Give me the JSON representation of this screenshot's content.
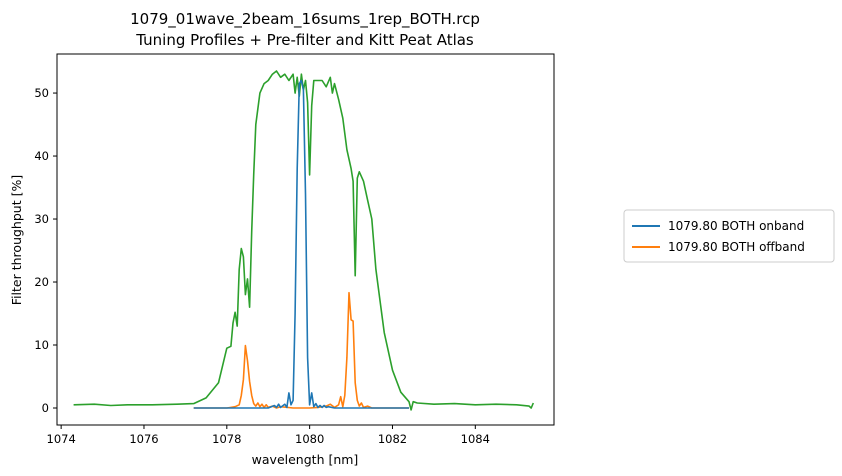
{
  "chart_data": {
    "type": "line",
    "title": "1079_01wave_2beam_16sums_1rep_BOTH.rcp",
    "subtitle": "Tuning Profiles + Pre-filter and Kitt Peat Atlas",
    "xlabel": "wavelength [nm]",
    "ylabel": "Filter throughput [%]",
    "xlim": [
      1073.9,
      1085.9
    ],
    "ylim": [
      -2.7,
      56.2
    ],
    "x_ticks": [
      1074,
      1076,
      1078,
      1080,
      1082,
      1084
    ],
    "y_ticks": [
      0,
      10,
      20,
      30,
      40,
      50
    ],
    "x_tick_labels": [
      "1074",
      "1076",
      "1078",
      "1080",
      "1082",
      "1084"
    ],
    "y_tick_labels": [
      "0",
      "10",
      "20",
      "30",
      "40",
      "50"
    ],
    "grid": false,
    "legend_position": "outside-right",
    "series": [
      {
        "name": "1079.80 BOTH onband",
        "color": "#1f77b4",
        "x": [
          1077.2,
          1079.0,
          1079.15,
          1079.2,
          1079.25,
          1079.3,
          1079.4,
          1079.45,
          1079.5,
          1079.55,
          1079.6,
          1079.65,
          1079.7,
          1079.75,
          1079.8,
          1079.85,
          1079.9,
          1079.95,
          1080.0,
          1080.05,
          1080.1,
          1080.15,
          1080.2,
          1080.25,
          1080.3,
          1080.35,
          1080.4,
          1080.45,
          1080.6,
          1082.4
        ],
        "y": [
          0,
          0,
          0.4,
          0.1,
          0.6,
          0.1,
          0.6,
          0.1,
          2.4,
          0.5,
          1.2,
          15.0,
          38.0,
          51.5,
          52.0,
          50.5,
          34.0,
          8.0,
          0.5,
          2.4,
          0.2,
          0.7,
          0.1,
          0.4,
          0.1,
          0.4,
          0.1,
          0.2,
          0,
          0
        ]
      },
      {
        "name": "1079.80 BOTH offband",
        "color": "#ff7f0e",
        "x": [
          1077.2,
          1078.0,
          1078.1,
          1078.2,
          1078.3,
          1078.35,
          1078.4,
          1078.45,
          1078.5,
          1078.55,
          1078.6,
          1078.65,
          1078.7,
          1078.75,
          1078.8,
          1078.85,
          1078.9,
          1078.95,
          1079.0,
          1079.1,
          1079.2,
          1079.3,
          1079.6,
          1080.0,
          1080.2,
          1080.4,
          1080.5,
          1080.6,
          1080.7,
          1080.75,
          1080.8,
          1080.85,
          1080.9,
          1080.95,
          1081.0,
          1081.05,
          1081.1,
          1081.15,
          1081.2,
          1081.25,
          1081.3,
          1081.4,
          1081.5,
          1082.4
        ],
        "y": [
          0,
          0,
          0.1,
          0.2,
          0.5,
          2.0,
          4.5,
          9.9,
          7.5,
          4.2,
          2.0,
          0.7,
          0.3,
          0.8,
          0.2,
          0.6,
          0.1,
          0.5,
          0.1,
          0.3,
          0,
          0.2,
          0,
          0,
          0.1,
          0.3,
          0.6,
          0.1,
          0.5,
          1.8,
          0.2,
          2.0,
          8.0,
          18.3,
          14.0,
          13.8,
          4.0,
          1.2,
          0.3,
          0.8,
          0.1,
          0.3,
          0,
          0
        ]
      },
      {
        "name": "",
        "color": "#2ca02c",
        "x": [
          1074.3,
          1074.8,
          1075.2,
          1075.6,
          1076.2,
          1076.8,
          1077.2,
          1077.5,
          1077.8,
          1078.0,
          1078.1,
          1078.15,
          1078.2,
          1078.25,
          1078.3,
          1078.35,
          1078.4,
          1078.45,
          1078.5,
          1078.55,
          1078.6,
          1078.65,
          1078.7,
          1078.8,
          1078.9,
          1079.0,
          1079.1,
          1079.2,
          1079.3,
          1079.4,
          1079.5,
          1079.6,
          1079.65,
          1079.7,
          1079.75,
          1079.8,
          1079.85,
          1079.9,
          1079.95,
          1080.0,
          1080.05,
          1080.1,
          1080.15,
          1080.2,
          1080.3,
          1080.4,
          1080.5,
          1080.55,
          1080.6,
          1080.7,
          1080.8,
          1080.9,
          1081.0,
          1081.05,
          1081.1,
          1081.15,
          1081.2,
          1081.3,
          1081.4,
          1081.5,
          1081.6,
          1081.8,
          1082.0,
          1082.2,
          1082.4,
          1082.45,
          1082.5,
          1082.6,
          1083.0,
          1083.5,
          1084.0,
          1084.5,
          1085.0,
          1085.3,
          1085.35,
          1085.4
        ],
        "y": [
          0.5,
          0.6,
          0.4,
          0.5,
          0.5,
          0.6,
          0.7,
          1.6,
          4.0,
          9.5,
          9.8,
          13.5,
          15.2,
          13.0,
          22.0,
          25.3,
          24.0,
          18.0,
          20.5,
          16.0,
          28.0,
          37.0,
          45.0,
          50.0,
          51.5,
          52.0,
          53.0,
          53.5,
          52.5,
          53.0,
          52.0,
          53.0,
          50.0,
          52.5,
          49.5,
          53.0,
          50.5,
          52.0,
          48.5,
          37.0,
          48.0,
          52.0,
          52.0,
          52.0,
          52.0,
          51.0,
          52.5,
          50.0,
          51.5,
          49.0,
          46.0,
          41.0,
          38.0,
          36.0,
          21.0,
          36.5,
          37.5,
          36.0,
          33.0,
          30.0,
          22.0,
          12.0,
          6.0,
          2.5,
          1.0,
          -0.3,
          1.0,
          0.8,
          0.6,
          0.7,
          0.5,
          0.6,
          0.5,
          0.3,
          0.0,
          0.8
        ]
      }
    ]
  }
}
